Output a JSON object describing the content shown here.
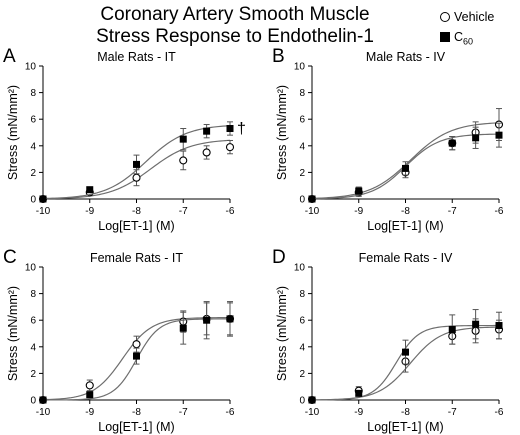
{
  "title_line1": "Coronary Artery Smooth Muscle",
  "title_line2": "Stress Response to Endothelin-1",
  "legend": {
    "vehicle": "Vehicle",
    "c60_base": "C",
    "c60_sub": "60",
    "vehicle_marker": "open-circle",
    "c60_marker": "filled-square"
  },
  "chart_data": [
    {
      "type": "scatter",
      "panel_letter": "A",
      "title": "Male Rats - IT",
      "xlabel": "Log[ET-1] (M)",
      "ylabel": "Stress (mN/mm²)",
      "xlim": [
        -10,
        -6
      ],
      "ylim": [
        0,
        10
      ],
      "xticks": [
        -10,
        -9,
        -8,
        -7,
        -6
      ],
      "yticks": [
        0,
        2,
        4,
        6,
        8,
        10
      ],
      "annotation": "†",
      "series": [
        {
          "name": "Vehicle",
          "marker": "open-circle",
          "x": [
            -10,
            -9,
            -8,
            -7,
            -6.5,
            -6
          ],
          "y": [
            0.0,
            0.5,
            1.6,
            2.9,
            3.5,
            3.9
          ],
          "error": [
            0.1,
            0.2,
            0.6,
            0.7,
            0.5,
            0.5
          ],
          "fit": {
            "bottom": 0,
            "top": 4.5,
            "ec50_log": -7.7,
            "hill": 1
          }
        },
        {
          "name": "C60",
          "marker": "filled-square",
          "x": [
            -10,
            -9,
            -8,
            -7,
            -6.5,
            -6
          ],
          "y": [
            0.0,
            0.7,
            2.6,
            4.5,
            5.1,
            5.3
          ],
          "error": [
            0.1,
            0.2,
            0.7,
            0.8,
            0.5,
            0.5
          ],
          "fit": {
            "bottom": 0,
            "top": 5.6,
            "ec50_log": -7.8,
            "hill": 1
          }
        }
      ]
    },
    {
      "type": "scatter",
      "panel_letter": "B",
      "title": "Male Rats - IV",
      "xlabel": "Log[ET-1] (M)",
      "ylabel": "Stress (mN/mm²)",
      "xlim": [
        -10,
        -6
      ],
      "ylim": [
        0,
        10
      ],
      "xticks": [
        -10,
        -9,
        -8,
        -7,
        -6
      ],
      "yticks": [
        0,
        2,
        4,
        6,
        8,
        10
      ],
      "annotation": "",
      "series": [
        {
          "name": "Vehicle",
          "marker": "open-circle",
          "x": [
            -10,
            -9,
            -8,
            -7,
            -6.5,
            -6
          ],
          "y": [
            0.0,
            0.5,
            2.0,
            4.2,
            5.0,
            5.6
          ],
          "error": [
            0.1,
            0.3,
            0.4,
            0.5,
            0.8,
            1.2
          ],
          "fit": {
            "bottom": 0,
            "top": 5.8,
            "ec50_log": -7.9,
            "hill": 1
          }
        },
        {
          "name": "C60",
          "marker": "filled-square",
          "x": [
            -10,
            -9,
            -8,
            -7,
            -6.5,
            -6
          ],
          "y": [
            0.0,
            0.6,
            2.3,
            4.2,
            4.6,
            4.8
          ],
          "error": [
            0.1,
            0.3,
            0.5,
            0.5,
            0.8,
            0.9
          ],
          "fit": {
            "bottom": 0,
            "top": 4.9,
            "ec50_log": -8.0,
            "hill": 1.2
          }
        }
      ]
    },
    {
      "type": "scatter",
      "panel_letter": "C",
      "title": "Female Rats - IT",
      "xlabel": "Log[ET-1] (M)",
      "ylabel": "Stress (mN/mm²)",
      "xlim": [
        -10,
        -6
      ],
      "ylim": [
        0,
        10
      ],
      "xticks": [
        -10,
        -9,
        -8,
        -7,
        -6
      ],
      "yticks": [
        0,
        2,
        4,
        6,
        8,
        10
      ],
      "annotation": "",
      "series": [
        {
          "name": "Vehicle",
          "marker": "open-circle",
          "x": [
            -10,
            -9,
            -8,
            -7,
            -6.5,
            -6
          ],
          "y": [
            0.0,
            1.1,
            4.2,
            5.9,
            6.1,
            6.1
          ],
          "error": [
            0.1,
            0.4,
            0.6,
            0.8,
            1.2,
            1.2
          ],
          "fit": {
            "bottom": 0,
            "top": 6.2,
            "ec50_log": -8.3,
            "hill": 1.4
          }
        },
        {
          "name": "C60",
          "marker": "filled-square",
          "x": [
            -10,
            -9,
            -8,
            -7,
            -6.5,
            -6
          ],
          "y": [
            0.0,
            0.4,
            3.3,
            5.4,
            6.0,
            6.1
          ],
          "error": [
            0.1,
            0.2,
            0.6,
            1.2,
            1.4,
            1.3
          ],
          "fit": {
            "bottom": 0,
            "top": 6.1,
            "ec50_log": -8.0,
            "hill": 1.8
          }
        }
      ]
    },
    {
      "type": "scatter",
      "panel_letter": "D",
      "title": "Female Rats - IV",
      "xlabel": "Log[ET-1] (M)",
      "ylabel": "Stress (mN/mm²)",
      "xlim": [
        -10,
        -6
      ],
      "ylim": [
        0,
        10
      ],
      "xticks": [
        -10,
        -9,
        -8,
        -7,
        -6
      ],
      "yticks": [
        0,
        2,
        4,
        6,
        8,
        10
      ],
      "annotation": "",
      "series": [
        {
          "name": "Vehicle",
          "marker": "open-circle",
          "x": [
            -10,
            -9,
            -8,
            -7,
            -6.5,
            -6
          ],
          "y": [
            0.0,
            0.7,
            2.9,
            4.8,
            5.2,
            5.3
          ],
          "error": [
            0.1,
            0.3,
            0.8,
            0.6,
            0.9,
            0.7
          ],
          "fit": {
            "bottom": 0,
            "top": 5.5,
            "ec50_log": -7.9,
            "hill": 1.3
          }
        },
        {
          "name": "C60",
          "marker": "filled-square",
          "x": [
            -10,
            -9,
            -8,
            -7,
            -6.5,
            -6
          ],
          "y": [
            0.0,
            0.5,
            3.6,
            5.3,
            5.7,
            5.6
          ],
          "error": [
            0.1,
            0.2,
            0.9,
            1.1,
            1.1,
            1.0
          ],
          "fit": {
            "bottom": 0,
            "top": 5.6,
            "ec50_log": -8.2,
            "hill": 1.8
          }
        }
      ]
    }
  ]
}
